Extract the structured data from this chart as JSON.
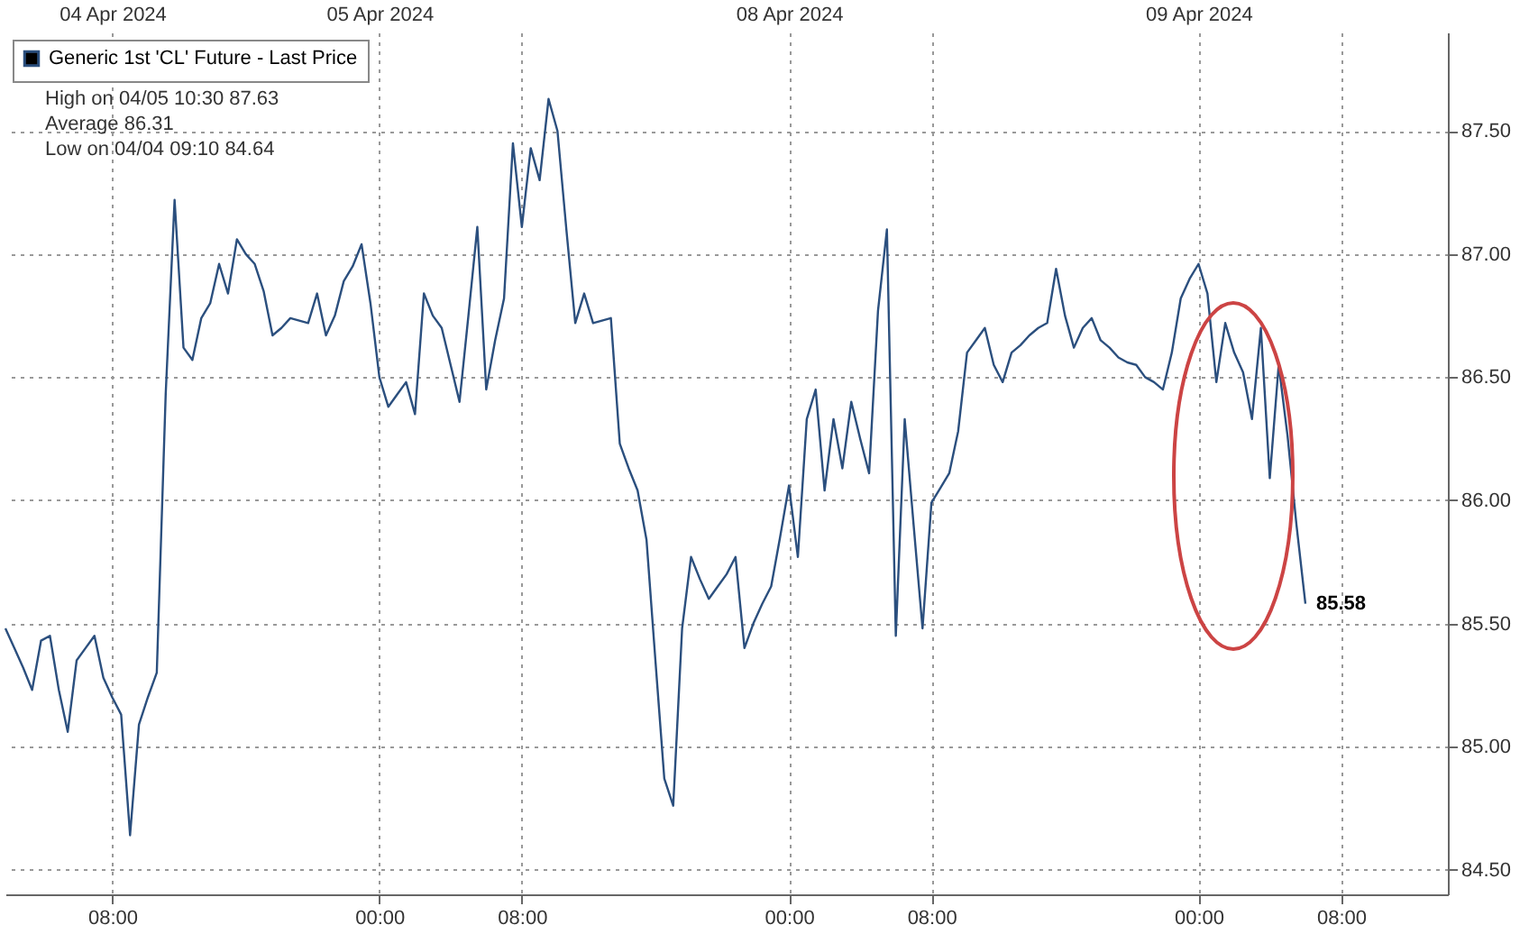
{
  "chart_data": {
    "type": "line",
    "categories": [
      null,
      null,
      null,
      null,
      null,
      null,
      null,
      null,
      null,
      null,
      null,
      null,
      "08:00\n04 Apr 2024",
      null,
      null,
      null,
      null,
      null,
      null,
      null,
      null,
      null,
      null,
      null,
      null,
      null,
      null,
      null,
      null,
      null,
      null,
      null,
      null,
      null,
      null,
      null,
      null,
      null,
      null,
      null,
      null,
      null,
      "00:00\n05 Apr 2024",
      null,
      null,
      null,
      null,
      null,
      null,
      null,
      null,
      null,
      null,
      null,
      null,
      null,
      null,
      null,
      "08:00",
      null,
      null,
      null,
      null,
      null,
      null,
      null,
      null,
      null,
      null,
      null,
      null,
      null,
      null,
      null,
      null,
      null,
      null,
      null,
      null,
      null,
      null,
      null,
      null,
      null,
      null,
      null,
      null,
      null,
      "00:00\n08 Apr 2024",
      null,
      null,
      null,
      null,
      null,
      null,
      null,
      null,
      null,
      null,
      null,
      null,
      null,
      null,
      null,
      "08:00",
      null,
      null,
      null,
      null,
      null,
      null,
      null,
      null,
      null,
      null,
      null,
      null,
      null,
      null,
      null,
      null,
      null,
      null,
      null,
      null,
      null,
      null,
      null,
      null,
      null,
      null,
      null,
      null,
      null,
      "00:00\n09 Apr 2024",
      null,
      null,
      null,
      null,
      null,
      null,
      null,
      null,
      null,
      null,
      null,
      null,
      null,
      null,
      null,
      "08:00",
      null,
      null,
      null,
      null,
      null,
      null,
      null,
      null,
      null,
      null,
      null,
      null
    ],
    "series": [
      {
        "name": "Generic 1st 'CL' Future - Last Price",
        "color": "#2b4f7e",
        "values": [
          85.48,
          85.4,
          85.32,
          85.23,
          85.43,
          85.45,
          85.23,
          85.06,
          85.35,
          85.4,
          85.45,
          85.28,
          85.2,
          85.13,
          84.64,
          85.09,
          85.2,
          85.3,
          86.43,
          87.22,
          86.62,
          86.57,
          86.74,
          86.8,
          86.96,
          86.84,
          87.06,
          87.0,
          86.96,
          86.85,
          86.67,
          86.7,
          86.74,
          86.73,
          86.72,
          86.84,
          86.67,
          86.75,
          86.89,
          86.95,
          87.04,
          86.8,
          86.5,
          86.38,
          86.43,
          86.48,
          86.35,
          86.84,
          86.75,
          86.7,
          86.55,
          86.4,
          86.75,
          87.11,
          86.45,
          86.65,
          86.82,
          87.45,
          87.11,
          87.43,
          87.3,
          87.63,
          87.5,
          87.1,
          86.72,
          86.84,
          86.72,
          86.73,
          86.74,
          86.23,
          86.13,
          86.04,
          85.84,
          85.35,
          84.87,
          84.76,
          85.48,
          85.77,
          85.68,
          85.6,
          85.65,
          85.7,
          85.77,
          85.4,
          85.5,
          85.58,
          85.65,
          85.85,
          86.06,
          85.77,
          86.33,
          86.45,
          86.04,
          86.33,
          86.13,
          86.4,
          86.25,
          86.11,
          86.77,
          87.1,
          85.45,
          86.33,
          85.9,
          85.48,
          85.99,
          86.05,
          86.11,
          86.28,
          86.6,
          86.65,
          86.7,
          86.55,
          86.48,
          86.6,
          86.63,
          86.67,
          86.7,
          86.72,
          86.94,
          86.75,
          86.62,
          86.7,
          86.74,
          86.65,
          86.62,
          86.58,
          86.56,
          86.55,
          86.5,
          86.48,
          86.45,
          86.6,
          86.82,
          86.9,
          86.96,
          86.84,
          86.48,
          86.72,
          86.6,
          86.52,
          86.33,
          86.7,
          86.09,
          86.55,
          86.26,
          85.9,
          85.58,
          null,
          null,
          null,
          null,
          null,
          null,
          null,
          null,
          null,
          null,
          null,
          null,
          null,
          null,
          null,
          null
        ],
        "value_labels": [
          null,
          null,
          null,
          null,
          null,
          null,
          null,
          null,
          null,
          null,
          null,
          null,
          null,
          null,
          null,
          null,
          null,
          null,
          null,
          null,
          null,
          null,
          null,
          null,
          null,
          null,
          null,
          null,
          null,
          null,
          null,
          null,
          null,
          null,
          null,
          null,
          null,
          null,
          null,
          null,
          null,
          null,
          null,
          null,
          null,
          null,
          null,
          null,
          null,
          null,
          null,
          null,
          null,
          null,
          null,
          null,
          null,
          null,
          null,
          null,
          null,
          null,
          null,
          null,
          null,
          null,
          null,
          null,
          null,
          null,
          null,
          null,
          null,
          null,
          null,
          null,
          null,
          null,
          null,
          null,
          null,
          null,
          null,
          null,
          null,
          null,
          null,
          null,
          null,
          null,
          null,
          null,
          null,
          null,
          null,
          null,
          null,
          null,
          null,
          null,
          null,
          null,
          null,
          null,
          null,
          null,
          null,
          null,
          null,
          null,
          null,
          null,
          null,
          null,
          null,
          null,
          null,
          null,
          null,
          null,
          null,
          null,
          null,
          null,
          null,
          null,
          null,
          null,
          null,
          null,
          null,
          null,
          null,
          null,
          null,
          null,
          null,
          null,
          null,
          null,
          null,
          null,
          null,
          null,
          null,
          null,
          "85.58",
          null,
          null,
          null,
          null,
          null,
          null,
          null,
          null,
          null,
          null,
          null,
          null,
          null,
          null,
          null,
          null
        ]
      }
    ],
    "annotations": [
      "High on 04/05 10:30 87.63",
      "Average 86.31",
      "Low on 04/04 09:10 84.64"
    ],
    "ylim": [
      84.4,
      87.9
    ],
    "yticks": [
      {
        "value": 84.5,
        "label": "84.50"
      },
      {
        "value": 85,
        "label": "85.00"
      },
      {
        "value": 85.5,
        "label": "85.50"
      },
      {
        "value": 86,
        "label": "86.00"
      },
      {
        "value": 86.5,
        "label": "86.50"
      },
      {
        "value": 87,
        "label": "87.00"
      },
      {
        "value": 87.5,
        "label": "87.50"
      }
    ],
    "grid": true,
    "legend": "top left",
    "marker": "none",
    "line_style": "solid"
  }
}
